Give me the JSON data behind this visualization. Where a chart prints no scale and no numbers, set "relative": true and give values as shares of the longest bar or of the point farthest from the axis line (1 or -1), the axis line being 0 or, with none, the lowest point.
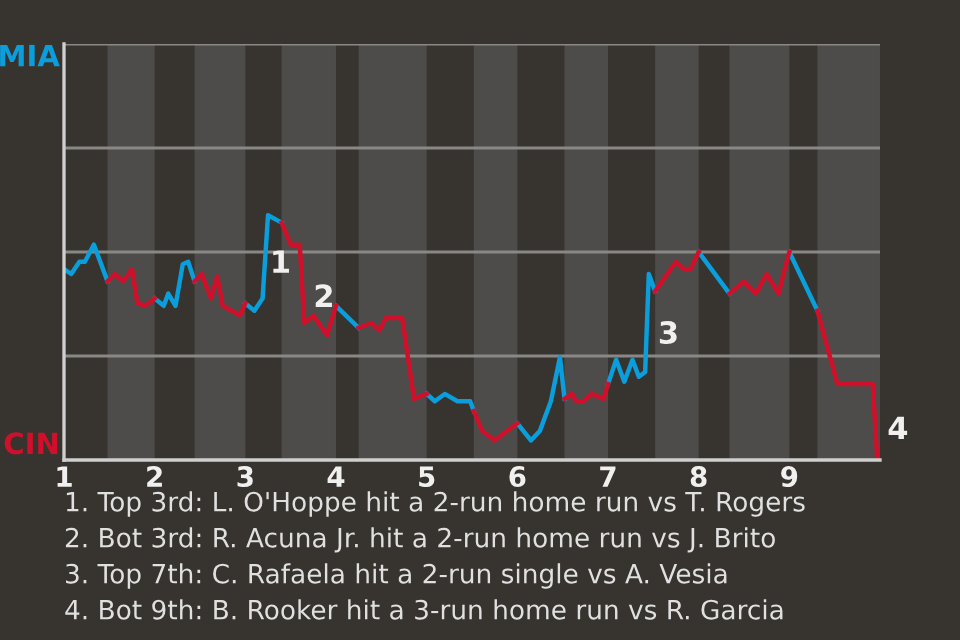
{
  "chart_data": {
    "type": "line",
    "relative": true,
    "xlim": [
      1,
      10
    ],
    "xticks": [
      1,
      2,
      3,
      4,
      5,
      6,
      7,
      8,
      9
    ],
    "ref_lines": [
      {
        "axis": "y",
        "value": 0.425,
        "color": "#8a8885"
      },
      {
        "axis": "y",
        "value": 0.85,
        "color": "#8a8885"
      },
      {
        "axis": "y",
        "value": 1.275,
        "color": "#8a8885"
      },
      {
        "axis": "y",
        "value": 1.7,
        "color": "#8a8885"
      }
    ],
    "marker": "none",
    "line_style": "solid",
    "legend": false,
    "bands": [
      {
        "axis": "x",
        "from": 1.48,
        "to": 2,
        "color": "#4e4c4a"
      },
      {
        "axis": "x",
        "from": 2.44,
        "to": 3,
        "color": "#4e4c4a"
      },
      {
        "axis": "x",
        "from": 3.4,
        "to": 4,
        "color": "#4e4c4a"
      },
      {
        "axis": "x",
        "from": 4.25,
        "to": 5,
        "color": "#4e4c4a"
      },
      {
        "axis": "x",
        "from": 5.52,
        "to": 6,
        "color": "#4e4c4a"
      },
      {
        "axis": "x",
        "from": 6.52,
        "to": 7,
        "color": "#4e4c4a"
      },
      {
        "axis": "x",
        "from": 7.52,
        "to": 8,
        "color": "#4e4c4a"
      },
      {
        "axis": "x",
        "from": 8.34,
        "to": 9,
        "color": "#4e4c4a"
      },
      {
        "axis": "x",
        "from": 9.31,
        "to": 10,
        "color": "#4e4c4a"
      }
    ],
    "series": [
      {
        "color": "#0a9fdc",
        "x": [
          1.0,
          1.08,
          1.17,
          1.23,
          1.33,
          1.48,
          null,
          2.0,
          2.1,
          2.15,
          2.23,
          2.31,
          2.37,
          2.44,
          null,
          3.0,
          3.1,
          3.19,
          3.25,
          3.4,
          null,
          4.0,
          4.25,
          null,
          5.0,
          5.09,
          5.2,
          5.34,
          5.48,
          5.52,
          null,
          6.0,
          6.15,
          6.25,
          6.37,
          6.47,
          6.52,
          null,
          7.0,
          7.09,
          7.18,
          7.27,
          7.34,
          7.41,
          7.45,
          7.52,
          null,
          8.0,
          8.34,
          null,
          9.0,
          9.31
        ],
        "values": [
          0.78,
          0.76,
          0.81,
          0.81,
          0.88,
          0.73,
          null,
          0.66,
          0.63,
          0.68,
          0.63,
          0.8,
          0.81,
          0.73,
          null,
          0.64,
          0.61,
          0.66,
          1.0,
          0.97,
          null,
          0.63,
          0.54,
          null,
          0.27,
          0.24,
          0.27,
          0.24,
          0.24,
          0.2,
          null,
          0.15,
          0.08,
          0.12,
          0.24,
          0.42,
          0.25,
          null,
          0.31,
          0.41,
          0.32,
          0.41,
          0.34,
          0.36,
          0.76,
          0.69,
          null,
          0.85,
          0.68,
          null,
          0.85,
          0.61
        ]
      },
      {
        "color": "#d0102a",
        "x": [
          1.48,
          1.56,
          1.65,
          1.75,
          1.81,
          1.9,
          2.0,
          null,
          2.44,
          2.52,
          2.62,
          2.69,
          2.75,
          2.85,
          2.94,
          3.0,
          null,
          3.4,
          3.5,
          3.6,
          3.65,
          3.75,
          3.9,
          4.0,
          null,
          4.25,
          4.39,
          4.48,
          4.55,
          4.73,
          4.86,
          5.0,
          null,
          5.52,
          5.61,
          5.75,
          6.0,
          null,
          6.52,
          6.6,
          6.65,
          6.73,
          6.82,
          6.95,
          7.0,
          null,
          7.52,
          7.75,
          7.84,
          7.91,
          8.0,
          null,
          8.34,
          8.5,
          8.63,
          8.75,
          8.88,
          8.97,
          9.0,
          null,
          9.31,
          9.53,
          9.92,
          9.97
        ],
        "values": [
          0.73,
          0.76,
          0.73,
          0.78,
          0.64,
          0.63,
          0.66,
          null,
          0.73,
          0.76,
          0.66,
          0.75,
          0.63,
          0.61,
          0.59,
          0.64,
          null,
          0.97,
          0.88,
          0.88,
          0.56,
          0.59,
          0.51,
          0.63,
          null,
          0.54,
          0.56,
          0.53,
          0.58,
          0.58,
          0.25,
          0.27,
          null,
          0.2,
          0.12,
          0.08,
          0.15,
          null,
          0.25,
          0.27,
          0.24,
          0.24,
          0.27,
          0.25,
          0.31,
          null,
          0.69,
          0.81,
          0.78,
          0.78,
          0.85,
          null,
          0.68,
          0.73,
          0.68,
          0.76,
          0.68,
          0.81,
          0.85,
          null,
          0.61,
          0.31,
          0.31,
          0.0
        ]
      }
    ],
    "annotations": [
      "MIA",
      "CIN",
      {
        "text": "1",
        "x": 3.27,
        "y": 0.8
      },
      {
        "text": "2",
        "x": 3.75,
        "y": 0.66
      },
      {
        "text": "3",
        "x": 7.55,
        "y": 0.51
      },
      {
        "text": "4",
        "x": 10.08,
        "y": 0.12
      },
      "1. Top 3rd: L. O'Hoppe hit a 2-run home run vs T. Rogers",
      "2. Bot 3rd: R. Acuna Jr. hit a 2-run home run vs J. Brito",
      "3. Top 7th: C. Rafaela hit a 2-run single vs A. Vesia",
      "4. Bot 9th: B. Rooker hit a 3-run home run vs R. Garcia"
    ]
  }
}
